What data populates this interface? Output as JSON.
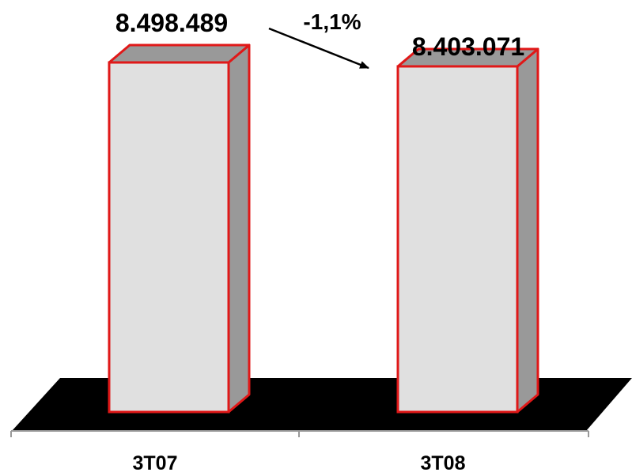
{
  "chart_data": {
    "type": "bar",
    "style": "3d-column",
    "categories": [
      "3T07",
      "3T08"
    ],
    "values": [
      8498489,
      8403071
    ],
    "value_labels": [
      "8.498.489",
      "8.403.071"
    ],
    "change_label": "-1,1%",
    "title": "",
    "xlabel": "",
    "ylabel": "",
    "grid": false,
    "legend": "none",
    "colors": {
      "bar_face": "#e0e0e0",
      "bar_side": "#999999",
      "bar_outline": "#e01818",
      "floor": "#000000",
      "axis": "#999999"
    }
  }
}
